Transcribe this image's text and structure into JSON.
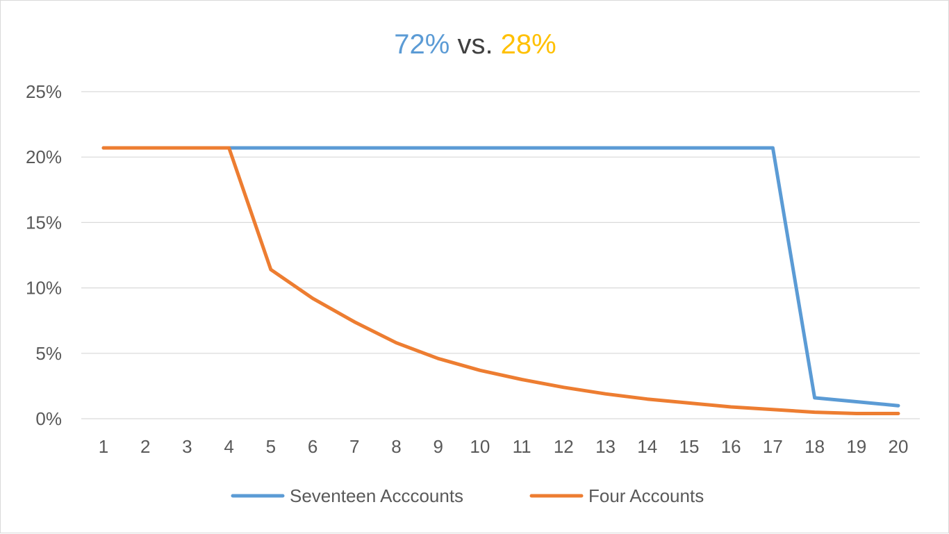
{
  "colors": {
    "series_blue": "#5b9bd5",
    "series_orange": "#ed7d31",
    "title_vs": "#404040",
    "title_right": "#ffc000",
    "gridline": "#d9d9d9",
    "tick_text": "#595959"
  },
  "chart_data": {
    "type": "line",
    "title": {
      "left_value": "72%",
      "middle": " vs. ",
      "right_value": "28%"
    },
    "xlabel": "",
    "ylabel": "",
    "x": [
      1,
      2,
      3,
      4,
      5,
      6,
      7,
      8,
      9,
      10,
      11,
      12,
      13,
      14,
      15,
      16,
      17,
      18,
      19,
      20
    ],
    "x_tick_labels": [
      "1",
      "2",
      "3",
      "4",
      "5",
      "6",
      "7",
      "8",
      "9",
      "10",
      "11",
      "12",
      "13",
      "14",
      "15",
      "16",
      "17",
      "18",
      "19",
      "20"
    ],
    "y_tick_labels": [
      "0%",
      "5%",
      "10%",
      "15%",
      "20%",
      "25%"
    ],
    "y_ticks": [
      0,
      0.05,
      0.1,
      0.15,
      0.2,
      0.25
    ],
    "ylim": [
      0,
      0.25
    ],
    "grid": "horizontal",
    "legend_position": "bottom",
    "series": [
      {
        "name": "Seventeen Acccounts",
        "color": "#5b9bd5",
        "values": [
          0.207,
          0.207,
          0.207,
          0.207,
          0.207,
          0.207,
          0.207,
          0.207,
          0.207,
          0.207,
          0.207,
          0.207,
          0.207,
          0.207,
          0.207,
          0.207,
          0.207,
          0.016,
          0.013,
          0.01
        ]
      },
      {
        "name": "Four Accounts",
        "color": "#ed7d31",
        "values": [
          0.207,
          0.207,
          0.207,
          0.207,
          0.114,
          0.092,
          0.074,
          0.058,
          0.046,
          0.037,
          0.03,
          0.024,
          0.019,
          0.015,
          0.012,
          0.009,
          0.007,
          0.005,
          0.004,
          0.004
        ]
      }
    ]
  }
}
